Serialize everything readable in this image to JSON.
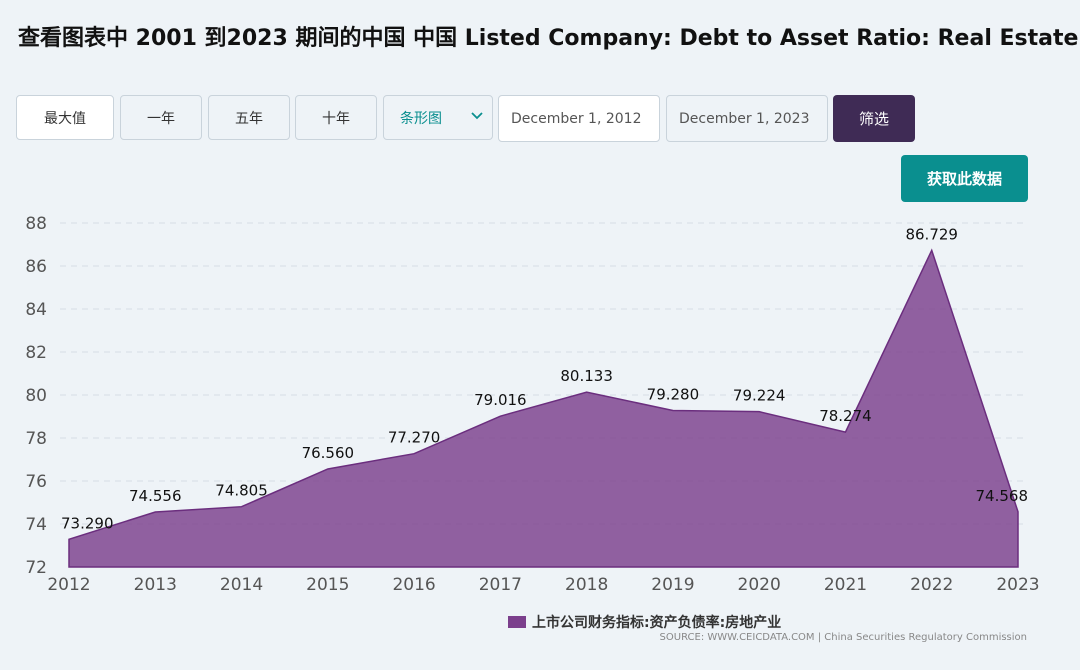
{
  "title": "查看图表中 2001 到2023 期间的中国 中国 Listed Company: Debt to Asset Ratio: Real Estate",
  "toolbar": {
    "max_label": "最大值",
    "one_year_label": "一年",
    "five_year_label": "五年",
    "ten_year_label": "十年",
    "chart_type_label": "条形图",
    "start_date": "December 1, 2012",
    "end_date": "December 1, 2023",
    "filter_label": "筛选"
  },
  "get_data_label": "获取此数据",
  "colors": {
    "area": "#7b3f8c",
    "accent": "#0a8f8f",
    "filter": "#3f2b55"
  },
  "chart_data": {
    "type": "area",
    "x": [
      "2012",
      "2013",
      "2014",
      "2015",
      "2016",
      "2017",
      "2018",
      "2019",
      "2020",
      "2021",
      "2022",
      "2023"
    ],
    "series": [
      {
        "name": "上市公司财务指标:资产负债率:房地产业",
        "values": [
          73.29,
          74.556,
          74.805,
          76.56,
          77.27,
          79.016,
          80.133,
          79.28,
          79.224,
          78.274,
          86.729,
          74.568
        ]
      }
    ],
    "data_labels": [
      "73.290",
      "74.556",
      "74.805",
      "76.560",
      "77.270",
      "79.016",
      "80.133",
      "79.280",
      "79.224",
      "78.274",
      "86.729",
      "74.568"
    ],
    "yticks": [
      "72",
      "74",
      "76",
      "78",
      "80",
      "82",
      "84",
      "86",
      "88"
    ],
    "ylim": [
      72,
      88
    ],
    "grid": true,
    "legend": "bottom-center"
  },
  "source": "SOURCE: WWW.CEICDATA.COM | China Securities Regulatory Commission"
}
